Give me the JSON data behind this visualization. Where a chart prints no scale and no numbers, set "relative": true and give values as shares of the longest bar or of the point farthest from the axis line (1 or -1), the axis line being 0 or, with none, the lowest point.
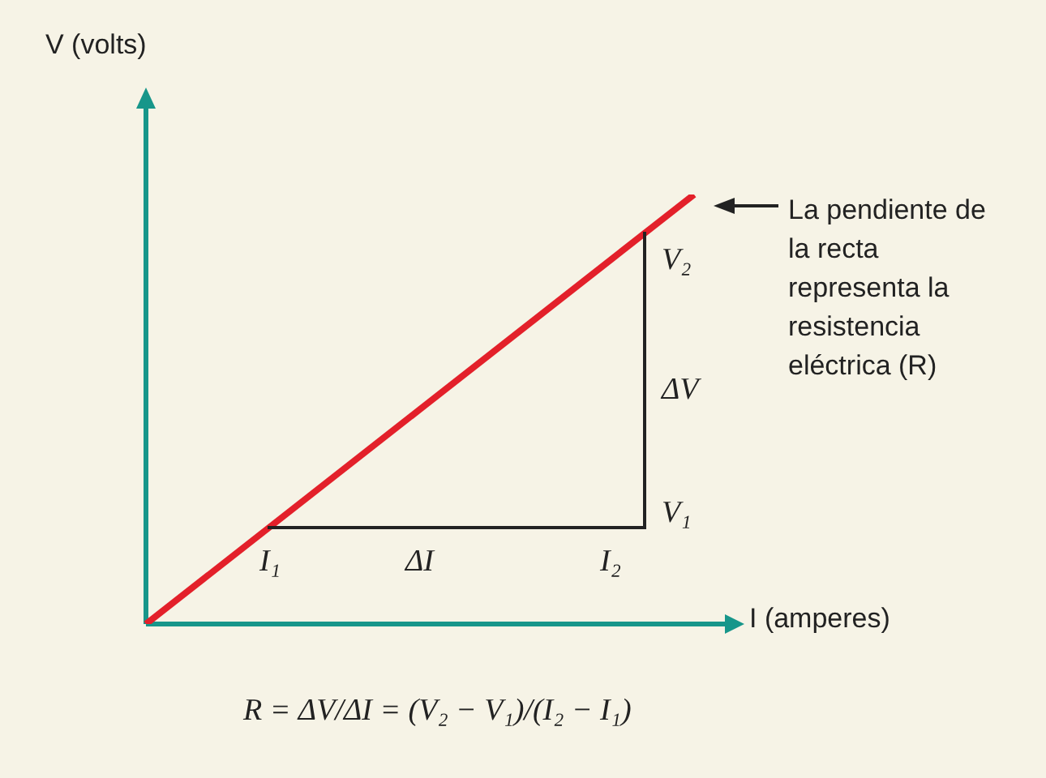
{
  "chart_data": {
    "type": "line",
    "relative": true,
    "xlabel": "I (amperes)",
    "ylabel": "V (volts)",
    "categories": [
      null,
      null
    ],
    "series": [
      {
        "color": "#e3202a",
        "values": [
          0,
          1
        ]
      }
    ],
    "legend": false,
    "marker": "none",
    "line_style": "solid",
    "annotations": [
      "I₁",
      "ΔI",
      "I₂",
      "V₁",
      "ΔV",
      "V₂",
      "La pendiente de la recta representa la resistencia eléctrica (R)",
      "R = ΔV/ΔI = (V₂ − V₁)/(I₂ − I₁)"
    ]
  }
}
